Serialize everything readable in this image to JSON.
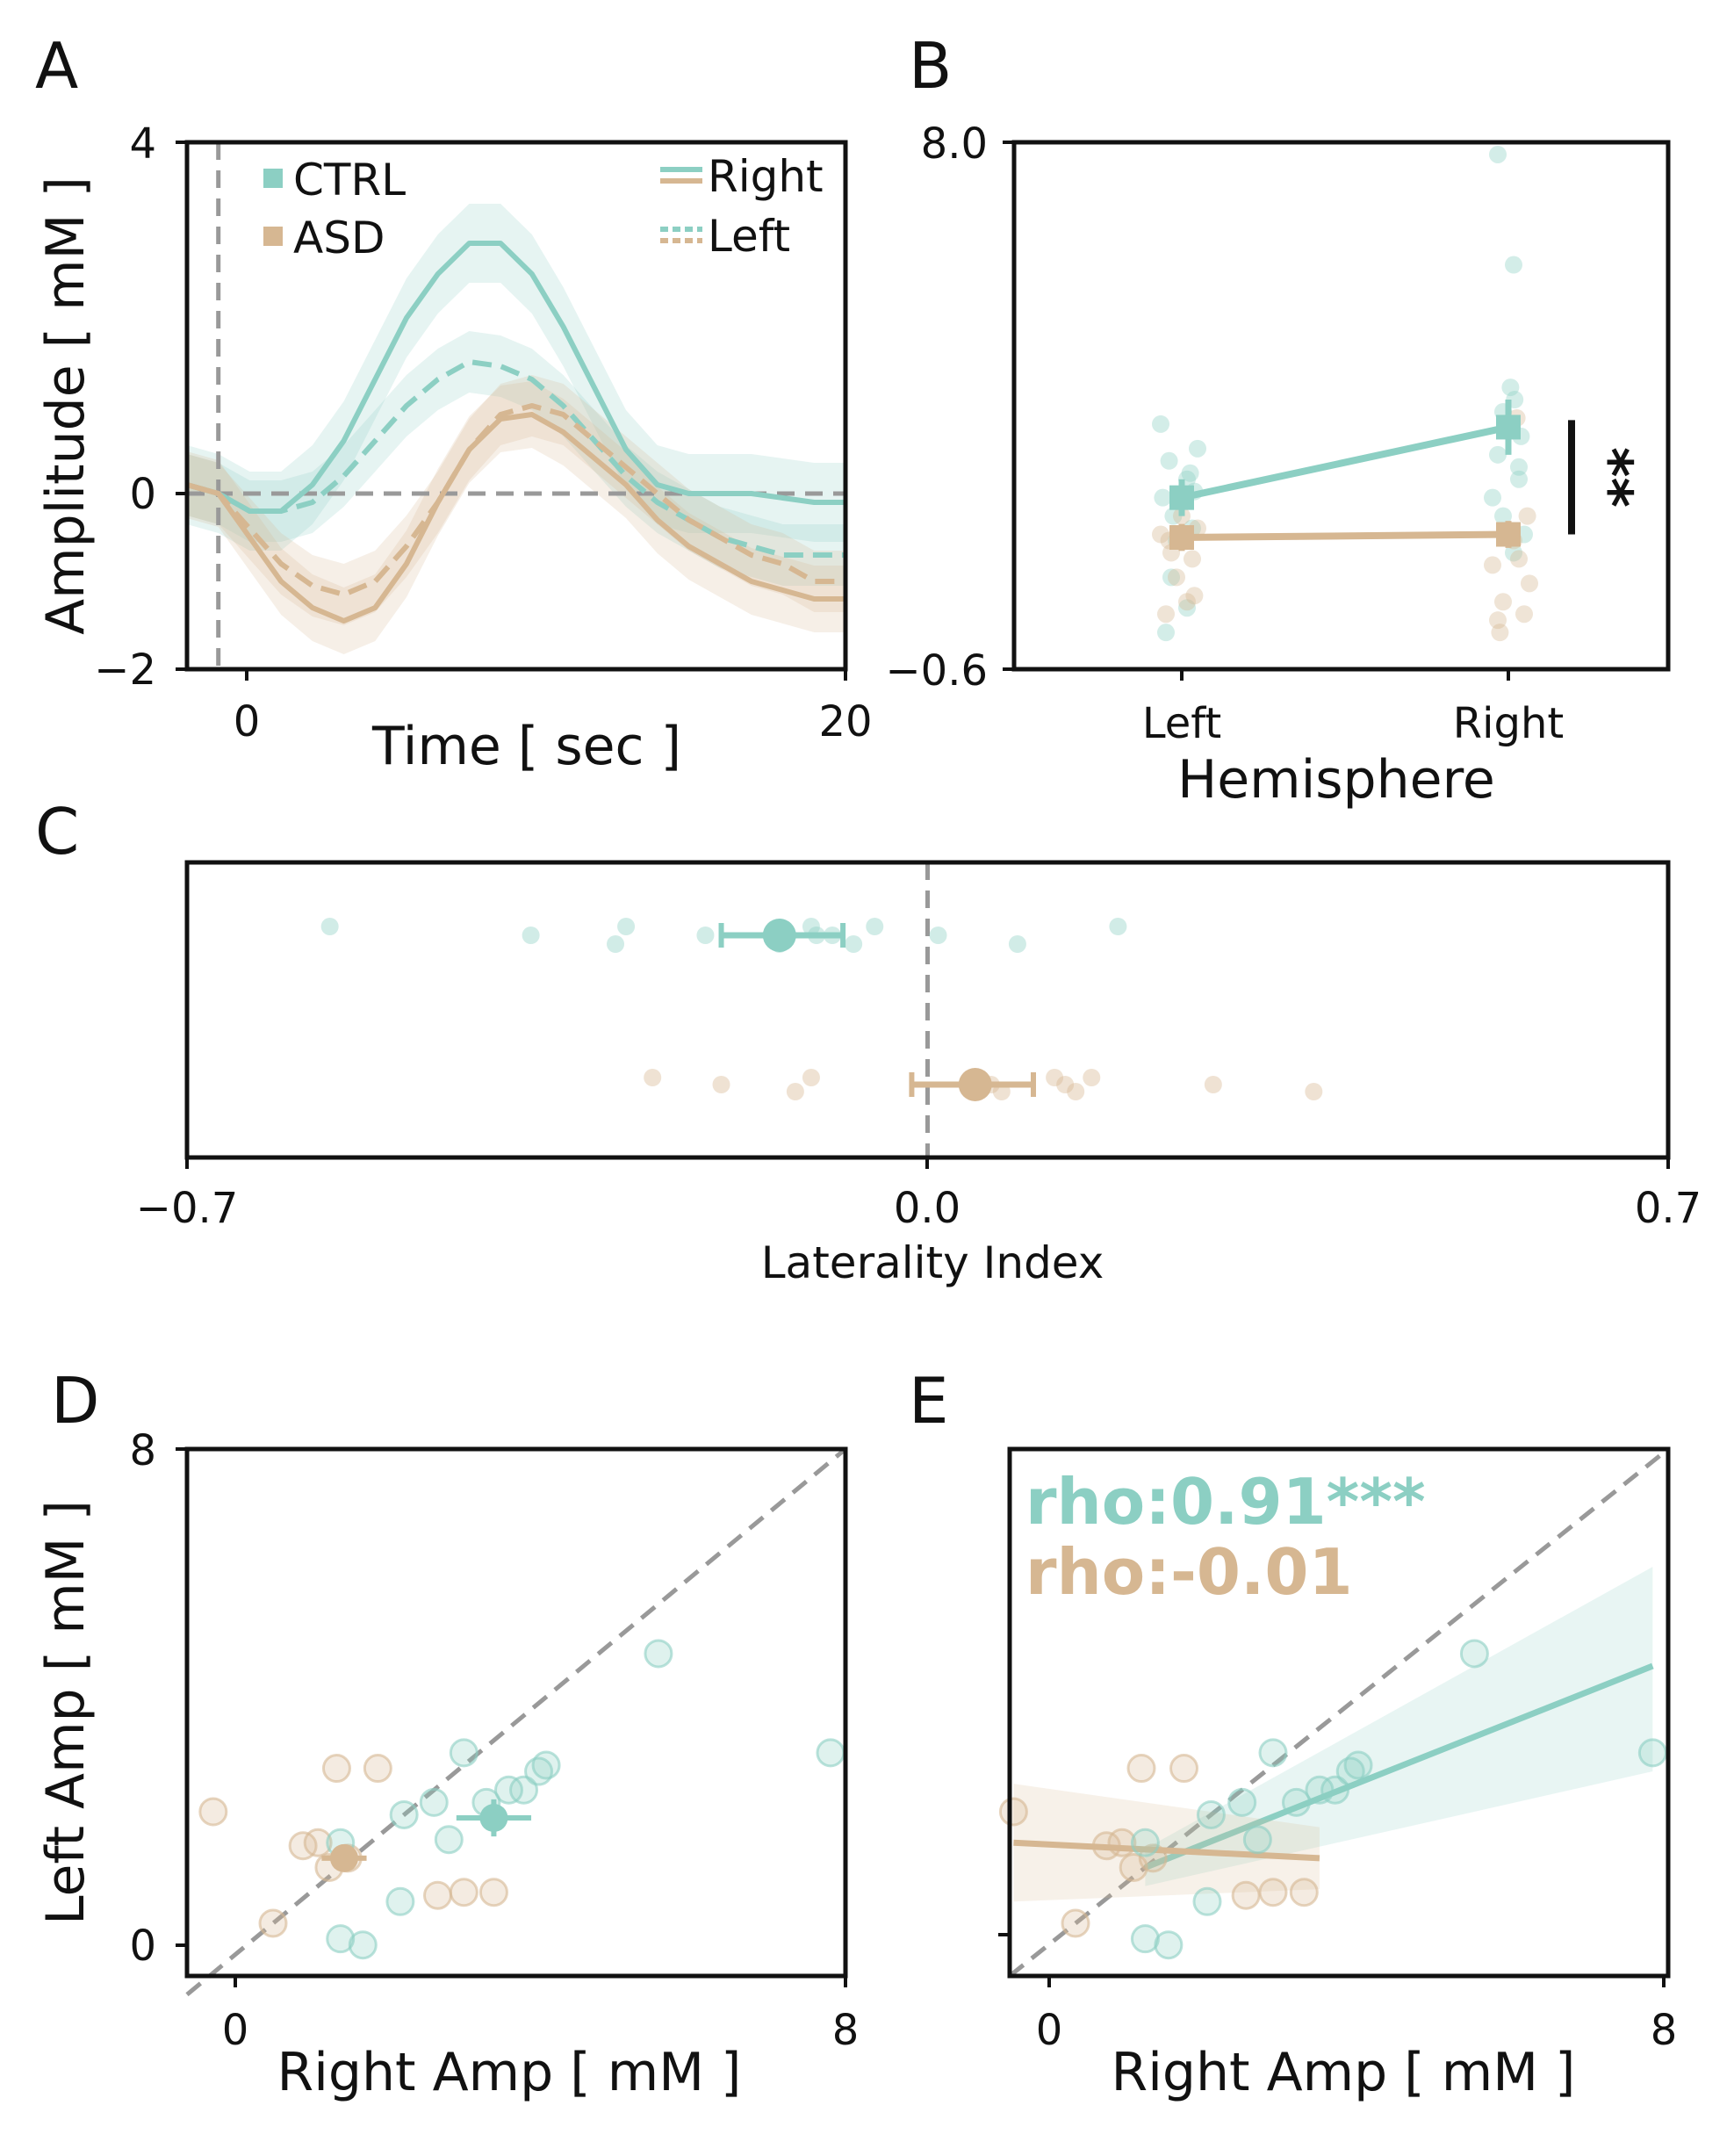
{
  "colors": {
    "ctrl": "#8ccfc3",
    "asd": "#d6b792",
    "ref": "#999999",
    "axis": "#111111"
  },
  "panel_letters": [
    "A",
    "B",
    "C",
    "D",
    "E"
  ],
  "chart_data": [
    {
      "panel": "A",
      "type": "line",
      "xlabel": "Time [ sec ]",
      "ylabel": "Amplitude [ mM ]",
      "xlim": [
        -1,
        20
      ],
      "ylim": [
        -2,
        4
      ],
      "xticks": [
        "0",
        "20"
      ],
      "yticks": [
        "4",
        "0",
        "−2"
      ],
      "legend_groups": [
        "CTRL",
        "ASD"
      ],
      "legend_styles": [
        "Right",
        "Left"
      ],
      "x": [
        -1,
        0,
        1,
        2,
        3,
        4,
        5,
        6,
        7,
        8,
        9,
        10,
        11,
        12,
        13,
        14,
        15,
        16,
        17,
        18,
        19,
        20
      ],
      "series": [
        {
          "name": "CTRL Right",
          "group": "ctrl",
          "dash": false,
          "values": [
            0.1,
            0.0,
            -0.2,
            -0.2,
            0.1,
            0.6,
            1.3,
            2.0,
            2.5,
            2.85,
            2.85,
            2.5,
            1.9,
            1.2,
            0.5,
            0.1,
            0.0,
            0.0,
            0.0,
            -0.05,
            -0.1,
            -0.1
          ],
          "band": 0.45
        },
        {
          "name": "CTRL Left",
          "group": "ctrl",
          "dash": true,
          "values": [
            0.1,
            0.0,
            -0.2,
            -0.2,
            -0.1,
            0.2,
            0.6,
            1.0,
            1.3,
            1.5,
            1.45,
            1.3,
            1.0,
            0.6,
            0.2,
            -0.1,
            -0.3,
            -0.5,
            -0.6,
            -0.7,
            -0.7,
            -0.7
          ],
          "band": 0.35
        },
        {
          "name": "ASD Right",
          "group": "asd",
          "dash": false,
          "values": [
            0.1,
            0.0,
            -0.5,
            -1.0,
            -1.3,
            -1.45,
            -1.3,
            -0.8,
            -0.1,
            0.5,
            0.85,
            0.9,
            0.7,
            0.4,
            0.1,
            -0.3,
            -0.6,
            -0.8,
            -1.0,
            -1.1,
            -1.2,
            -1.2
          ],
          "band": 0.38
        },
        {
          "name": "ASD Left",
          "group": "asd",
          "dash": true,
          "values": [
            0.1,
            0.0,
            -0.4,
            -0.8,
            -1.05,
            -1.15,
            -1.0,
            -0.6,
            -0.1,
            0.5,
            0.9,
            1.0,
            0.9,
            0.6,
            0.3,
            0.0,
            -0.3,
            -0.5,
            -0.7,
            -0.8,
            -1.0,
            -1.0
          ],
          "band": 0.35
        }
      ]
    },
    {
      "panel": "B",
      "type": "scatter",
      "xlabel": "Hemisphere",
      "ylabel": "",
      "categories": [
        "Left",
        "Right"
      ],
      "ylim": [
        -0.6,
        8.0
      ],
      "yticks": [
        "8.0",
        "−0.6"
      ],
      "significance": "**",
      "means": [
        {
          "group": "ctrl",
          "values": [
            2.2,
            3.35
          ],
          "errors": [
            0.3,
            0.45
          ]
        },
        {
          "group": "asd",
          "values": [
            1.55,
            1.6
          ],
          "errors": [
            0.22,
            0.22
          ]
        }
      ],
      "ctrl_points": [
        [
          -0.2,
          3.4
        ],
        [
          0.05,
          2.5
        ],
        [
          -0.12,
          2.8
        ],
        [
          -0.18,
          2.2
        ],
        [
          0.1,
          1.7
        ],
        [
          -0.05,
          1.5
        ],
        [
          0.15,
          3.0
        ],
        [
          -0.1,
          0.9
        ],
        [
          0.05,
          0.4
        ],
        [
          -0.15,
          0.0
        ],
        [
          0.12,
          2.3
        ],
        [
          -0.08,
          1.9
        ],
        [
          0.08,
          2.6
        ],
        [
          -0.1,
          7.8
        ],
        [
          0.05,
          6.0
        ],
        [
          0.02,
          4.0
        ],
        [
          -0.05,
          3.6
        ],
        [
          0.06,
          3.8
        ],
        [
          0.1,
          2.7
        ],
        [
          -0.1,
          2.9
        ],
        [
          0.12,
          3.2
        ],
        [
          -0.15,
          2.2
        ],
        [
          0.15,
          1.6
        ],
        [
          0.05,
          1.3
        ],
        [
          -0.05,
          1.9
        ],
        [
          0.1,
          2.5
        ]
      ],
      "asd_points": [
        [
          -0.2,
          1.6
        ],
        [
          0.15,
          1.7
        ],
        [
          -0.1,
          1.3
        ],
        [
          0.1,
          1.2
        ],
        [
          -0.15,
          0.3
        ],
        [
          0.05,
          0.5
        ],
        [
          0.0,
          1.9
        ],
        [
          -0.05,
          0.9
        ],
        [
          0.12,
          0.6
        ],
        [
          -0.12,
          1.5
        ],
        [
          0.15,
          0.3
        ],
        [
          0.2,
          0.8
        ],
        [
          -0.15,
          1.1
        ],
        [
          -0.1,
          0.2
        ],
        [
          0.1,
          1.2
        ],
        [
          0.05,
          1.5
        ],
        [
          0.18,
          1.9
        ],
        [
          -0.05,
          0.5
        ],
        [
          0.08,
          3.5
        ],
        [
          -0.08,
          0.0
        ]
      ]
    },
    {
      "panel": "C",
      "type": "scatter",
      "xlabel": "Laterality Index",
      "xlim": [
        -0.7,
        0.7
      ],
      "xticks": [
        "−0.7",
        "0.0",
        "0.7"
      ],
      "ctrl_points": [
        -0.565,
        -0.375,
        -0.295,
        -0.285,
        -0.21,
        -0.14,
        -0.11,
        -0.09,
        -0.07,
        -0.05,
        0.01,
        0.085,
        0.18,
        -0.105
      ],
      "asd_points": [
        -0.26,
        -0.195,
        -0.125,
        -0.11,
        0.04,
        0.07,
        0.12,
        0.13,
        0.14,
        0.155,
        0.27,
        0.365,
        0.045,
        0.06
      ],
      "means": [
        {
          "group": "ctrl",
          "value": -0.14,
          "ci": [
            -0.195,
            -0.08
          ]
        },
        {
          "group": "asd",
          "value": 0.045,
          "ci": [
            -0.015,
            0.1
          ]
        }
      ]
    },
    {
      "panel": "D",
      "type": "scatter",
      "xlabel": "Right Amp [ mM ]",
      "ylabel": "Left Amp [ mM ]",
      "xlim": [
        -0.8,
        8
      ],
      "ylim": [
        -0.5,
        8
      ],
      "xticks": [
        "0",
        "8"
      ],
      "yticks": [
        "8",
        "0"
      ],
      "ctrl_points": [
        [
          5.5,
          4.7
        ],
        [
          7.8,
          3.1
        ],
        [
          4.0,
          2.9
        ],
        [
          3.9,
          2.8
        ],
        [
          3.7,
          2.5
        ],
        [
          2.9,
          3.1
        ],
        [
          3.5,
          2.5
        ],
        [
          2.5,
          2.3
        ],
        [
          3.2,
          2.3
        ],
        [
          2.1,
          2.1
        ],
        [
          2.7,
          1.7
        ],
        [
          1.25,
          1.65
        ],
        [
          2.05,
          0.7
        ],
        [
          1.25,
          0.1
        ],
        [
          1.55,
          0.0
        ]
      ],
      "asd_points": [
        [
          -0.45,
          2.15
        ],
        [
          1.2,
          2.85
        ],
        [
          1.75,
          2.85
        ],
        [
          0.75,
          1.6
        ],
        [
          0.95,
          1.65
        ],
        [
          1.1,
          1.25
        ],
        [
          1.35,
          1.4
        ],
        [
          2.55,
          0.8
        ],
        [
          2.9,
          0.85
        ],
        [
          3.3,
          0.85
        ],
        [
          0.35,
          0.35
        ]
      ],
      "means": [
        {
          "group": "ctrl",
          "x": 3.3,
          "y": 2.05,
          "xerr": 0.5,
          "yerr": 0.3
        },
        {
          "group": "asd",
          "x": 1.3,
          "y": 1.4,
          "xerr": 0.3,
          "yerr": 0.2
        }
      ]
    },
    {
      "panel": "E",
      "type": "scatter",
      "xlabel": "Right Amp [ mM ]",
      "ylabel": "",
      "xlim": [
        -0.5,
        8
      ],
      "ylim": [
        -0.5,
        8
      ],
      "xticks": [
        "0",
        "8"
      ],
      "annotations": [
        {
          "group": "ctrl",
          "text": "rho:0.91***"
        },
        {
          "group": "asd",
          "text": "rho:-0.01"
        }
      ],
      "ctrl_points": [
        [
          5.5,
          4.7
        ],
        [
          7.8,
          3.1
        ],
        [
          4.0,
          2.9
        ],
        [
          3.9,
          2.8
        ],
        [
          3.7,
          2.5
        ],
        [
          2.9,
          3.1
        ],
        [
          3.5,
          2.5
        ],
        [
          2.5,
          2.3
        ],
        [
          3.2,
          2.3
        ],
        [
          2.1,
          2.1
        ],
        [
          2.7,
          1.7
        ],
        [
          1.25,
          1.65
        ],
        [
          2.05,
          0.7
        ],
        [
          1.25,
          0.1
        ],
        [
          1.55,
          0.0
        ]
      ],
      "asd_points": [
        [
          -0.45,
          2.15
        ],
        [
          1.2,
          2.85
        ],
        [
          1.75,
          2.85
        ],
        [
          0.75,
          1.6
        ],
        [
          0.95,
          1.65
        ],
        [
          1.1,
          1.25
        ],
        [
          1.35,
          1.4
        ],
        [
          2.55,
          0.8
        ],
        [
          2.9,
          0.85
        ],
        [
          3.3,
          0.85
        ],
        [
          0.35,
          0.35
        ]
      ],
      "fits": [
        {
          "group": "ctrl",
          "x": [
            1.25,
            7.8
          ],
          "y": [
            1.25,
            4.5
          ],
          "band_lo": [
            0.95,
            2.8
          ],
          "band_hi": [
            1.55,
            6.1
          ]
        },
        {
          "group": "asd",
          "x": [
            -0.45,
            3.5
          ],
          "y": [
            1.65,
            1.4
          ],
          "band_lo": [
            0.7,
            0.9
          ],
          "band_hi": [
            2.6,
            1.9
          ]
        }
      ]
    }
  ]
}
